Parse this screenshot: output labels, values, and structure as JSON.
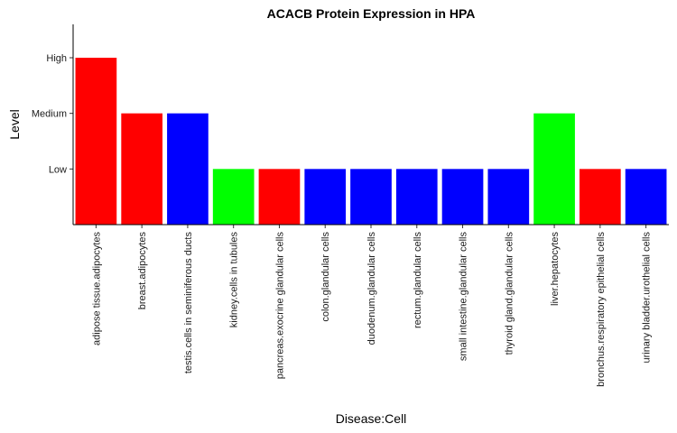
{
  "chart_data": {
    "type": "bar",
    "title": "ACACB Protein Expression in HPA",
    "xlabel": "Disease:Cell",
    "ylabel": "Level",
    "y_levels": [
      "Low",
      "Medium",
      "High"
    ],
    "ylim": [
      0,
      3.6
    ],
    "grid": false,
    "categories": [
      "adipose tissue.adipocytes",
      "breast.adipocytes",
      "testis.cells in seminiferous ducts",
      "kidney.cells in tubules",
      "pancreas.exocrine glandular cells",
      "colon.glandular cells",
      "duodenum.glandular cells",
      "rectum.glandular cells",
      "small intestine.glandular cells",
      "thyroid gland.glandular cells",
      "liver.hepatocytes",
      "bronchus.respiratory epithelial cells",
      "urinary bladder.urothelial cells"
    ],
    "values": [
      3,
      2,
      2,
      1,
      1,
      1,
      1,
      1,
      1,
      1,
      2,
      1,
      1
    ],
    "value_labels": [
      "High",
      "Medium",
      "Medium",
      "Low",
      "Low",
      "Low",
      "Low",
      "Low",
      "Low",
      "Low",
      "Medium",
      "Low",
      "Low"
    ],
    "colors": [
      "#ff0000",
      "#ff0000",
      "#0000ff",
      "#00ff00",
      "#ff0000",
      "#0000ff",
      "#0000ff",
      "#0000ff",
      "#0000ff",
      "#0000ff",
      "#00ff00",
      "#ff0000",
      "#0000ff"
    ]
  }
}
